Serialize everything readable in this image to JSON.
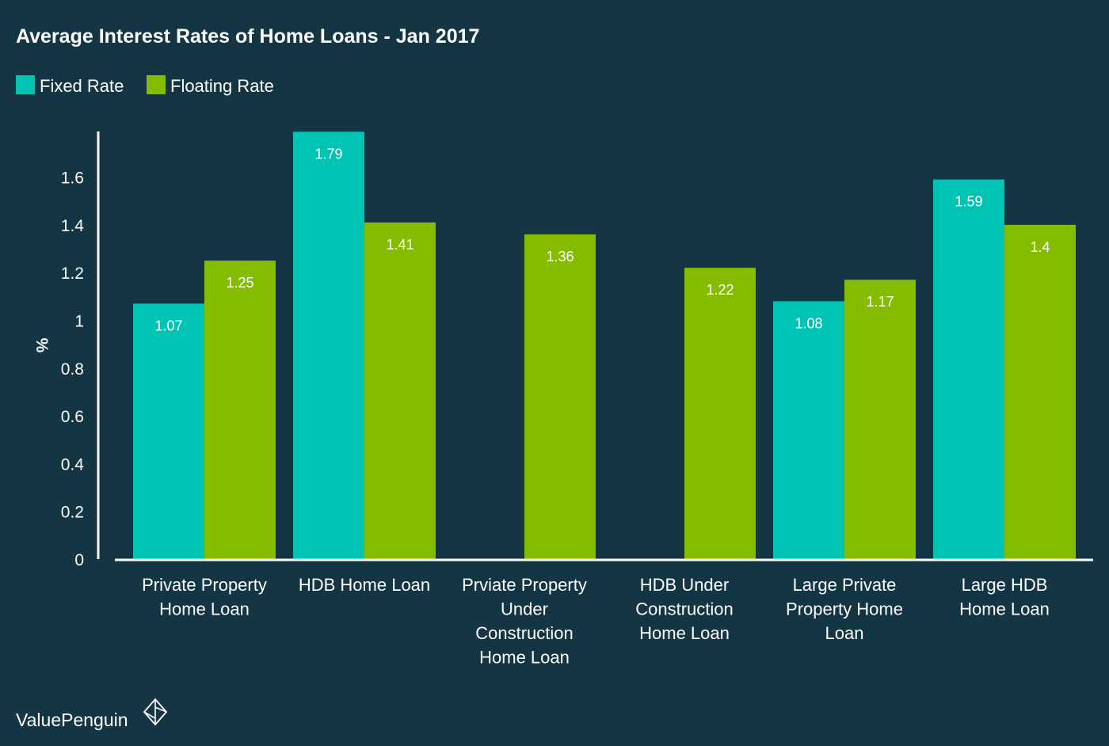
{
  "chart_data": {
    "type": "bar",
    "title": "Average Interest Rates of Home Loans - Jan 2017",
    "ylabel": "%",
    "xlabel": "",
    "ylim": [
      0,
      1.8
    ],
    "yticks": [
      "0",
      "0.2",
      "0.4",
      "0.6",
      "0.8",
      "1",
      "1.2",
      "1.4",
      "1.6"
    ],
    "yticks_values": [
      0,
      0.2,
      0.4,
      0.6,
      0.8,
      1,
      1.2,
      1.4,
      1.6
    ],
    "grid": false,
    "legend_position": "top-left",
    "categories": [
      [
        "Private Property",
        "Home Loan"
      ],
      [
        "HDB Home Loan"
      ],
      [
        "Prviate Property",
        "Under",
        "Construction",
        "Home Loan"
      ],
      [
        "HDB Under",
        "Construction",
        "Home Loan"
      ],
      [
        "Large Private",
        "Property Home",
        "Loan"
      ],
      [
        "Large HDB",
        "Home Loan"
      ]
    ],
    "series": [
      {
        "name": "Fixed Rate",
        "color": "#00c4b3",
        "values": [
          1.07,
          1.79,
          null,
          null,
          1.08,
          1.59
        ],
        "labels": [
          "1.07",
          "1.79",
          "",
          "",
          "1.08",
          "1.59"
        ]
      },
      {
        "name": "Floating Rate",
        "color": "#86bc00",
        "values": [
          1.25,
          1.41,
          1.36,
          1.22,
          1.17,
          1.4
        ],
        "labels": [
          "1.25",
          "1.41",
          "1.36",
          "1.22",
          "1.17",
          "1.4"
        ]
      }
    ]
  },
  "branding": {
    "name": "ValuePenguin",
    "icon": "valuepenguin-logo-icon"
  },
  "colors": {
    "background": "#143543",
    "axis": "#ffffff"
  }
}
